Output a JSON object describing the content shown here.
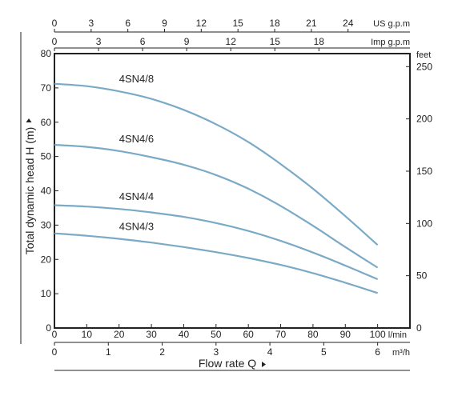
{
  "colors": {
    "curve": "#7aaac6",
    "axis": "#222222",
    "grid": "#d6d6d6"
  },
  "chart_data": {
    "type": "line",
    "title": "",
    "xlabel": "Flow rate Q",
    "ylabel": "Total dynamic head H (m)",
    "x_unit": "l/min",
    "xlim": [
      0,
      110
    ],
    "ylim": [
      0,
      80
    ],
    "x_ticks": [
      0,
      10,
      20,
      30,
      40,
      50,
      60,
      70,
      80,
      90,
      100
    ],
    "y_ticks": [
      0,
      10,
      20,
      30,
      40,
      50,
      60,
      70,
      80
    ],
    "grid": false,
    "legend": "none",
    "secondary_axes": {
      "top_us": {
        "unit": "US g.p.m",
        "ticks": [
          0,
          3,
          6,
          9,
          12,
          15,
          18,
          21,
          24
        ]
      },
      "top_imp": {
        "unit": "Imp g.p.m",
        "ticks": [
          0,
          3,
          6,
          9,
          12,
          15,
          18
        ]
      },
      "bottom_m3h": {
        "unit": "m³/h",
        "ticks": [
          0,
          1,
          2,
          3,
          4,
          5,
          6
        ]
      },
      "right_feet": {
        "unit": "feet",
        "ticks": [
          0,
          50,
          100,
          150,
          200,
          250
        ]
      }
    },
    "series": [
      {
        "name": "4SN4/8",
        "x": [
          0,
          10,
          20,
          30,
          40,
          50,
          60,
          70,
          80,
          90,
          100
        ],
        "y": [
          71.2,
          70.5,
          69.0,
          66.8,
          63.6,
          59.4,
          54.2,
          47.8,
          40.6,
          32.6,
          24.2
        ]
      },
      {
        "name": "4SN4/6",
        "x": [
          0,
          10,
          20,
          30,
          40,
          50,
          60,
          70,
          80,
          90,
          100
        ],
        "y": [
          53.4,
          52.8,
          51.6,
          49.8,
          47.6,
          44.6,
          40.6,
          35.6,
          29.8,
          23.6,
          17.6
        ]
      },
      {
        "name": "4SN4/4",
        "x": [
          0,
          10,
          20,
          30,
          40,
          50,
          60,
          70,
          80,
          90,
          100
        ],
        "y": [
          35.8,
          35.4,
          34.7,
          33.7,
          32.4,
          30.6,
          28.3,
          25.4,
          22.0,
          18.2,
          14.2
        ]
      },
      {
        "name": "4SN4/3",
        "x": [
          0,
          10,
          20,
          30,
          40,
          50,
          60,
          70,
          80,
          90,
          100
        ],
        "y": [
          27.6,
          26.9,
          26.0,
          24.9,
          23.6,
          22.1,
          20.4,
          18.4,
          16.0,
          13.2,
          10.2
        ]
      }
    ]
  }
}
